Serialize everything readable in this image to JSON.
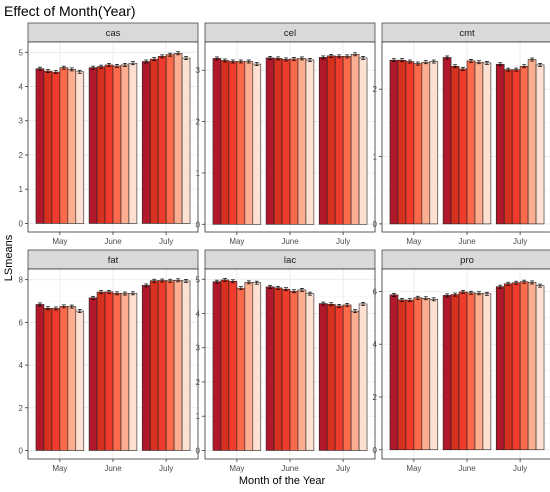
{
  "chart_data": {
    "type": "bar",
    "title": "Effect of Month(Year)",
    "xlabel": "Month of the Year",
    "ylabel": "LSmeans",
    "categories": [
      "May",
      "June",
      "July"
    ],
    "bars_per_category": 6,
    "colors": [
      "#b2182b",
      "#d7301f",
      "#ef3b2c",
      "#fb6a4a",
      "#fcae91",
      "#fee0d2"
    ],
    "grid": true,
    "legend": "none",
    "panels": [
      {
        "name": "cas",
        "ylim": [
          -0.25,
          5.3
        ],
        "yticks": [
          0,
          1,
          2,
          3,
          4,
          5
        ],
        "values": [
          [
            4.52,
            4.45,
            4.42,
            4.55,
            4.5,
            4.43
          ],
          [
            4.55,
            4.58,
            4.63,
            4.6,
            4.63,
            4.68
          ],
          [
            4.73,
            4.8,
            4.88,
            4.93,
            4.97,
            4.83
          ]
        ]
      },
      {
        "name": "cel",
        "ylim": [
          -0.15,
          3.55
        ],
        "yticks": [
          0,
          1,
          2,
          3
        ],
        "values": [
          [
            3.23,
            3.19,
            3.17,
            3.17,
            3.17,
            3.12
          ],
          [
            3.24,
            3.23,
            3.21,
            3.22,
            3.23,
            3.2
          ],
          [
            3.25,
            3.28,
            3.27,
            3.27,
            3.31,
            3.24
          ]
        ]
      },
      {
        "name": "cmt",
        "ylim": [
          -0.12,
          2.7
        ],
        "yticks": [
          0,
          1,
          2
        ],
        "values": [
          [
            2.43,
            2.43,
            2.41,
            2.38,
            2.4,
            2.41
          ],
          [
            2.47,
            2.34,
            2.3,
            2.42,
            2.4,
            2.39
          ],
          [
            2.37,
            2.29,
            2.29,
            2.34,
            2.44,
            2.36
          ]
        ]
      },
      {
        "name": "fat",
        "ylim": [
          -0.4,
          8.5
        ],
        "yticks": [
          0,
          2,
          4,
          6,
          8
        ],
        "values": [
          [
            6.84,
            6.66,
            6.65,
            6.75,
            6.74,
            6.53
          ],
          [
            7.15,
            7.42,
            7.43,
            7.36,
            7.35,
            7.36
          ],
          [
            7.73,
            7.95,
            7.96,
            7.95,
            7.97,
            7.94
          ]
        ]
      },
      {
        "name": "lac",
        "ylim": [
          -0.25,
          5.3
        ],
        "yticks": [
          0,
          1,
          2,
          3,
          4,
          5
        ],
        "values": [
          [
            4.93,
            4.98,
            4.94,
            4.74,
            4.91,
            4.9
          ],
          [
            4.78,
            4.75,
            4.71,
            4.65,
            4.69,
            4.58
          ],
          [
            4.29,
            4.27,
            4.22,
            4.25,
            4.07,
            4.28
          ]
        ]
      },
      {
        "name": "pro",
        "ylim": [
          -0.35,
          6.85
        ],
        "yticks": [
          0,
          2,
          4,
          6
        ],
        "values": [
          [
            5.87,
            5.68,
            5.67,
            5.76,
            5.74,
            5.7
          ],
          [
            5.85,
            5.88,
            5.98,
            5.95,
            5.93,
            5.91
          ],
          [
            6.18,
            6.29,
            6.33,
            6.37,
            6.34,
            6.22
          ]
        ]
      }
    ]
  }
}
